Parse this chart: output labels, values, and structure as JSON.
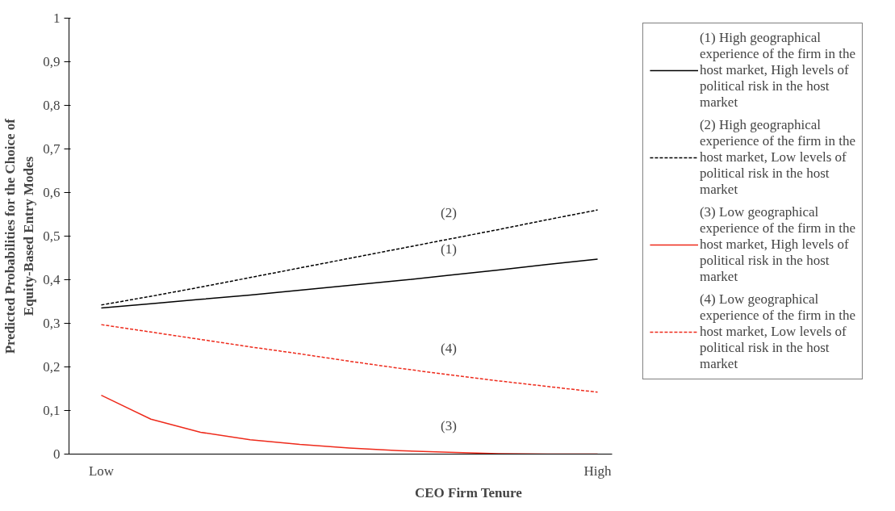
{
  "chart_data": {
    "type": "line",
    "xlabel": "CEO Firm Tenure",
    "ylabel": "Predicted Probabilities for the Choice of\nEquity-Based Entry Modes",
    "categories": [
      "Low",
      null,
      null,
      null,
      null,
      null,
      null,
      null,
      null,
      null,
      "High"
    ],
    "ylim": [
      0,
      1
    ],
    "yticks": [
      {
        "value": 0,
        "label": "0"
      },
      {
        "value": 0.1,
        "label": "0,1"
      },
      {
        "value": 0.2,
        "label": "0,2"
      },
      {
        "value": 0.3,
        "label": "0,3"
      },
      {
        "value": 0.4,
        "label": "0,4"
      },
      {
        "value": 0.5,
        "label": "0,5"
      },
      {
        "value": 0.6,
        "label": "0,6"
      },
      {
        "value": 0.7,
        "label": "0,7"
      },
      {
        "value": 0.8,
        "label": "0,8"
      },
      {
        "value": 0.9,
        "label": "0,9"
      },
      {
        "value": 1,
        "label": "1"
      }
    ],
    "grid": false,
    "legend": "right",
    "marker": "none",
    "series": [
      {
        "name": "(1) High geographical experience of the firm in the host market, High levels of political risk in the host market",
        "color": "#000000",
        "line_style": "solid",
        "values": [
          0.335,
          0.345,
          0.355,
          0.365,
          0.376,
          0.387,
          0.398,
          0.41,
          0.422,
          0.435,
          0.447
        ]
      },
      {
        "name": "(2) High geographical experience of the firm in the host market, Low levels of political risk in the host market",
        "color": "#000000",
        "line_style": "dashed",
        "values": [
          0.342,
          0.362,
          0.383,
          0.405,
          0.427,
          0.449,
          0.471,
          0.493,
          0.515,
          0.538,
          0.56
        ]
      },
      {
        "name": "(3) Low geographical experience of the firm in the host market, High levels of political risk in the host market",
        "color": "#ee2a1b",
        "line_style": "solid",
        "values": [
          0.135,
          0.08,
          0.05,
          0.033,
          0.022,
          0.014,
          0.008,
          0.004,
          0.001,
          0,
          0
        ]
      },
      {
        "name": "(4) Low geographical experience of the firm in the host market, Low levels of political risk in the host market",
        "color": "#ee2a1b",
        "line_style": "dashed",
        "values": [
          0.297,
          0.28,
          0.263,
          0.246,
          0.23,
          0.213,
          0.197,
          0.182,
          0.168,
          0.155,
          0.142
        ]
      }
    ],
    "annotations": [
      "(2)",
      "(1)",
      "(4)",
      "(3)"
    ]
  }
}
